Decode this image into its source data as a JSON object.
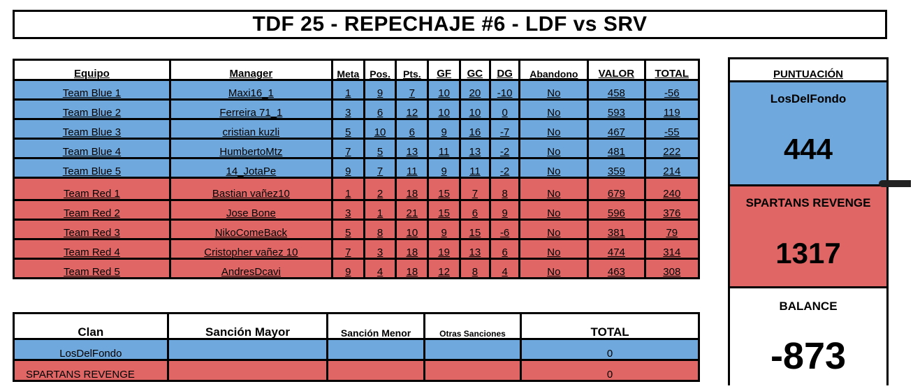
{
  "title": "TDF 25 - REPECHAJE #6 - LDF vs SRV",
  "team_table": {
    "headers": [
      "Equipo",
      "Manager",
      "Meta",
      "Pos.",
      "Pts.",
      "GF",
      "GC",
      "DG",
      "Abandono",
      "VALOR",
      "TOTAL"
    ],
    "rows": [
      {
        "team": "Team Blue 1",
        "manager": "Maxi16_1",
        "meta": "1",
        "pos": "9",
        "pts": "7",
        "gf": "10",
        "gc": "20",
        "dg": "-10",
        "abandono": "No",
        "valor": "458",
        "total": "-56"
      },
      {
        "team": "Team Blue 2",
        "manager": "Ferreira 71_1",
        "meta": "3",
        "pos": "6",
        "pts": "12",
        "gf": "10",
        "gc": "10",
        "dg": "0",
        "abandono": "No",
        "valor": "593",
        "total": "119"
      },
      {
        "team": "Team Blue 3",
        "manager": "cristian kuzli",
        "meta": "5",
        "pos": "10",
        "pts": "6",
        "gf": "9",
        "gc": "16",
        "dg": "-7",
        "abandono": "No",
        "valor": "467",
        "total": "-55"
      },
      {
        "team": "Team Blue 4",
        "manager": "HumbertoMtz",
        "meta": "7",
        "pos": "5",
        "pts": "13",
        "gf": "11",
        "gc": "13",
        "dg": "-2",
        "abandono": "No",
        "valor": "481",
        "total": "222"
      },
      {
        "team": "Team Blue 5",
        "manager": "14_JotaPe",
        "meta": "9",
        "pos": "7",
        "pts": "11",
        "gf": "9",
        "gc": "11",
        "dg": "-2",
        "abandono": "No",
        "valor": "359",
        "total": "214"
      },
      {
        "team": "Team Red 1",
        "manager": "Bastian vañez10",
        "meta": "1",
        "pos": "2",
        "pts": "18",
        "gf": "15",
        "gc": "7",
        "dg": "8",
        "abandono": "No",
        "valor": "679",
        "total": "240"
      },
      {
        "team": "Team Red 2",
        "manager": "Jose Bone",
        "meta": "3",
        "pos": "1",
        "pts": "21",
        "gf": "15",
        "gc": "6",
        "dg": "9",
        "abandono": "No",
        "valor": "596",
        "total": "376"
      },
      {
        "team": "Team Red 3",
        "manager": "NikoComeBack",
        "meta": "5",
        "pos": "8",
        "pts": "10",
        "gf": "9",
        "gc": "15",
        "dg": "-6",
        "abandono": "No",
        "valor": "381",
        "total": "79"
      },
      {
        "team": "Team Red 4",
        "manager": "Cristopher vañez 10",
        "meta": "7",
        "pos": "3",
        "pts": "18",
        "gf": "19",
        "gc": "13",
        "dg": "6",
        "abandono": "No",
        "valor": "474",
        "total": "314"
      },
      {
        "team": "Team Red 5",
        "manager": "AndresDcavi",
        "meta": "9",
        "pos": "4",
        "pts": "18",
        "gf": "12",
        "gc": "8",
        "dg": "4",
        "abandono": "No",
        "valor": "463",
        "total": "308"
      }
    ]
  },
  "clan_table": {
    "headers": [
      "Clan",
      "Sanción Mayor",
      "Sanción Menor",
      "Otras Sanciones",
      "TOTAL"
    ],
    "rows": [
      {
        "clan": "LosDelFondo",
        "mayor": "",
        "menor": "",
        "otras": "",
        "total": "0"
      },
      {
        "clan": "SPARTANS REVENGE",
        "mayor": "",
        "menor": "",
        "otras": "",
        "total": "0"
      }
    ]
  },
  "scores": {
    "header": "PUNTUACIÓN",
    "team1_name": "LosDelFondo",
    "team1_score": "444",
    "team2_name": "SPARTANS REVENGE",
    "team2_score": "1317",
    "balance_label": "BALANCE",
    "balance_value": "-873"
  },
  "colors": {
    "blue": "#6fa8dc",
    "red": "#e06666",
    "border": "#000000"
  }
}
